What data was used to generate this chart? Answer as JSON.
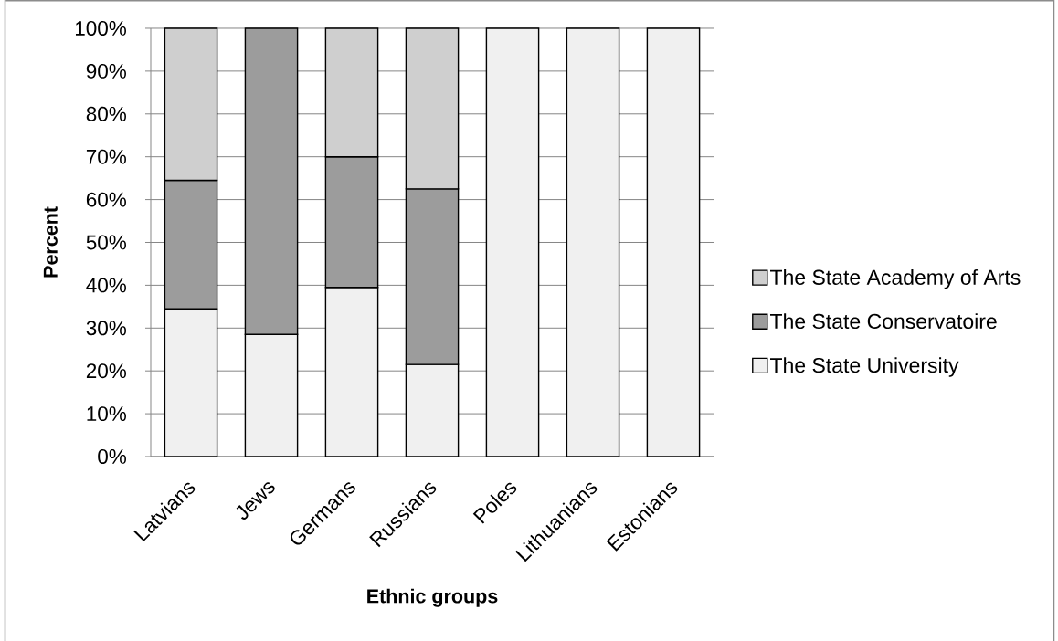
{
  "chart_data": {
    "type": "bar",
    "stacked": true,
    "xlabel": "Ethnic groups",
    "ylabel": "Percent",
    "categories": [
      "Latvians",
      "Jews",
      "Germans",
      "Russians",
      "Poles",
      "Lithuanians",
      "Estonians"
    ],
    "series": [
      {
        "name": "The State University",
        "color": "#f0f0f0",
        "values": [
          34.5,
          28.5,
          39.5,
          21.5,
          100,
          100,
          100
        ]
      },
      {
        "name": "The State Conservatoire",
        "color": "#9c9c9c",
        "values": [
          30,
          71.5,
          30.5,
          41,
          null,
          null,
          null
        ]
      },
      {
        "name": "The State Academy of Arts",
        "color": "#cfcfcf",
        "values": [
          35.5,
          null,
          30,
          37.5,
          null,
          null,
          null
        ]
      }
    ],
    "ylim": [
      0,
      100
    ],
    "yticks": [
      {
        "value": 0,
        "label": "0%"
      },
      {
        "value": 10,
        "label": "10%"
      },
      {
        "value": 20,
        "label": "20%"
      },
      {
        "value": 30,
        "label": "30%"
      },
      {
        "value": 40,
        "label": "40%"
      },
      {
        "value": 50,
        "label": "50%"
      },
      {
        "value": 60,
        "label": "60%"
      },
      {
        "value": 70,
        "label": "70%"
      },
      {
        "value": 80,
        "label": "80%"
      },
      {
        "value": 90,
        "label": "90%"
      },
      {
        "value": 100,
        "label": "100%"
      }
    ],
    "grid": "y",
    "legend": "right"
  }
}
